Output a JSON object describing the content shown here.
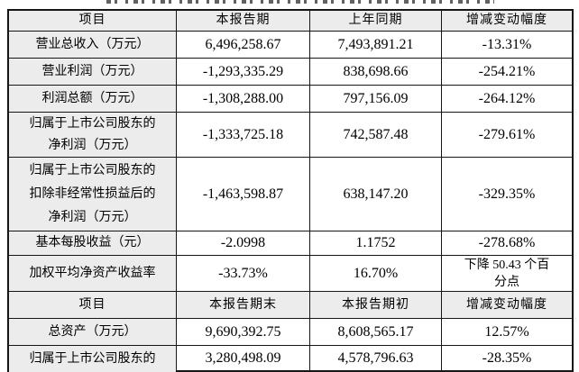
{
  "colors": {
    "grid": "#161616",
    "header_fill": "#ececec",
    "text": "#000000"
  },
  "summary_table": {
    "headers": {
      "item": "项目",
      "current": "本报告期",
      "prior": "上年同期",
      "change": "增减变动幅度"
    },
    "rows": [
      {
        "label": "营业总收入（万元）",
        "current": "6,496,258.67",
        "prior": "7,493,891.21",
        "change": "-13.31%"
      },
      {
        "label": "营业利润（万元）",
        "current": "-1,293,335.29",
        "prior": "838,698.66",
        "change": "-254.21%"
      },
      {
        "label": "利润总额（万元）",
        "current": "-1,308,288.00",
        "prior": "797,156.09",
        "change": "-264.12%"
      },
      {
        "label": "归属于上市公司股东的\n净利润（万元）",
        "current": "-1,333,725.18",
        "prior": "742,587.48",
        "change": "-279.61%"
      },
      {
        "label": "归属于上市公司股东的\n扣除非经常性损益后的\n净利润（万元）",
        "current": "-1,463,598.87",
        "prior": "638,147.20",
        "change": "-329.35%"
      },
      {
        "label": "基本每股收益（元）",
        "current": "-2.0998",
        "prior": "1.1752",
        "change": "-278.68%"
      },
      {
        "label": "加权平均净资产收益率",
        "current": "-33.73%",
        "prior": "16.70%",
        "change": "下降 50.43 个百\n分点"
      }
    ]
  },
  "balance_table": {
    "headers": {
      "item": "项目",
      "current": "本报告期末",
      "prior": "本报告期初",
      "change": "增减变动幅度"
    },
    "rows": [
      {
        "label": "总资产（万元）",
        "current": "9,690,392.75",
        "prior": "8,608,565.17",
        "change": "12.57%"
      },
      {
        "label": "归属于上市公司股东的",
        "current": "3,280,498.09",
        "prior": "4,578,796.63",
        "change": "-28.35%"
      }
    ]
  }
}
